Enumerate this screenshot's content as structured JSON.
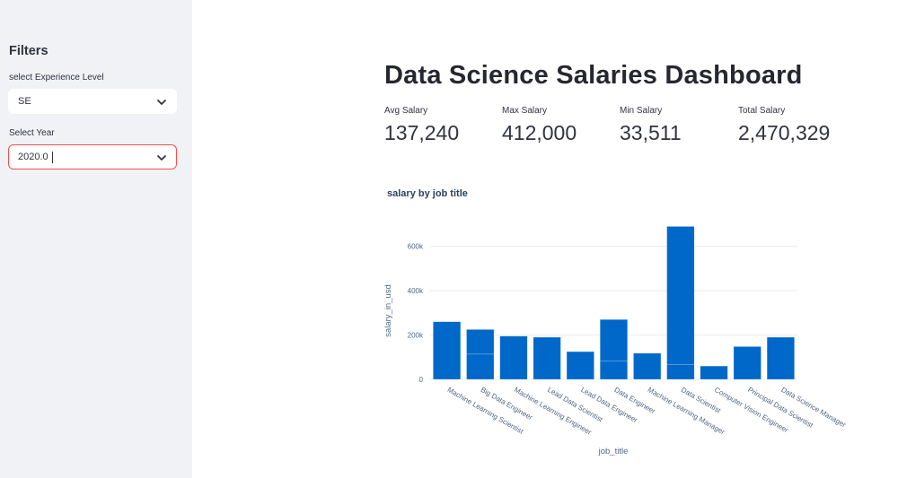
{
  "sidebar": {
    "title": "Filters",
    "experience": {
      "label": "select Experience Level",
      "value": "SE"
    },
    "year": {
      "label": "Select Year",
      "value": "2020.0"
    }
  },
  "main": {
    "title": "Data Science Salaries Dashboard",
    "metrics": [
      {
        "label": "Avg Salary",
        "value": "137,240"
      },
      {
        "label": "Max Salary",
        "value": "412,000"
      },
      {
        "label": "Min Salary",
        "value": "33,511"
      },
      {
        "label": "Total Salary",
        "value": "2,470,329"
      }
    ]
  },
  "chart_data": {
    "type": "bar",
    "title": "salary by job title",
    "xlabel": "job_title",
    "ylabel": "salary_in_usd",
    "ylim": [
      0,
      700000
    ],
    "yticks": [
      0,
      200000,
      400000,
      600000
    ],
    "ytick_labels": [
      "0",
      "200k",
      "400k",
      "600k"
    ],
    "bar_color": "#0068c9",
    "categories": [
      "Machine Learning Scientist",
      "Big Data Engineer",
      "Machine Learning Engineer",
      "Lead Data Scientist",
      "Lead Data Engineer",
      "Data Engineer",
      "Machine Learning Manager",
      "Data Scientist",
      "Computer Vision Engineer",
      "Principal Data Scientist",
      "Data Science Manager"
    ],
    "stacks": [
      [
        260000
      ],
      [
        114000,
        111000
      ],
      [
        195000
      ],
      [
        190000
      ],
      [
        125000
      ],
      [
        82000,
        188000
      ],
      [
        118000
      ],
      [
        68000,
        622000
      ],
      [
        60000
      ],
      [
        148000
      ],
      [
        190000
      ]
    ]
  }
}
